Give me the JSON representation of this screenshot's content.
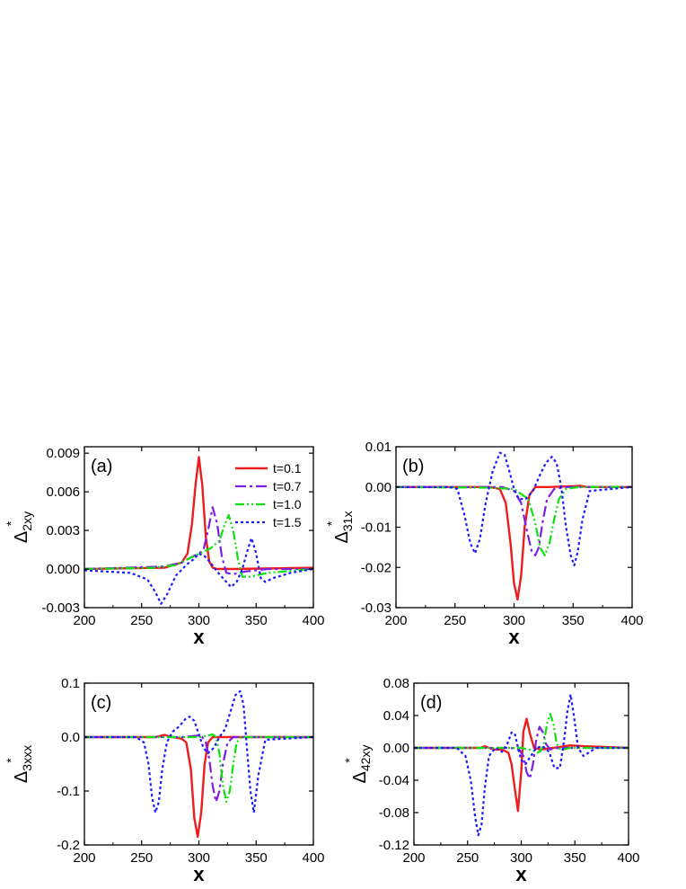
{
  "colors": {
    "t01": "#ee1c1c",
    "t07": "#7a1fe6",
    "t10": "#10e010",
    "t15": "#1a1aff",
    "axis": "#000000"
  },
  "chart_data": [
    {
      "type": "line",
      "panel_label": "(a)",
      "ylabel_main": "Δ",
      "ylabel_sup": "*",
      "ylabel_sub": "2xy",
      "xlabel": "x",
      "xlim": [
        200,
        400
      ],
      "ylim": [
        -0.003,
        0.0095
      ],
      "xticks": [
        200,
        250,
        300,
        350,
        400
      ],
      "xtick_labels": [
        "200",
        "250",
        "300",
        "350",
        "400"
      ],
      "yticks": [
        -0.003,
        0.0,
        0.003,
        0.006,
        0.009
      ],
      "ytick_labels": [
        "-0.003",
        "0.000",
        "0.003",
        "0.006",
        "0.009"
      ],
      "legend": {
        "placement": "top-right",
        "entries": [
          "t=0.1",
          "t=0.7",
          "t=1.0",
          "t=1.5"
        ]
      },
      "series": [
        {
          "name": "t=0.1",
          "color_key": "t01",
          "style": "solid",
          "x": [
            200,
            270,
            285,
            290,
            294,
            297,
            300,
            303,
            306,
            309,
            312,
            316,
            330,
            400
          ],
          "y": [
            0.0,
            0.0001,
            0.0005,
            0.0012,
            0.0035,
            0.0065,
            0.0087,
            0.0065,
            0.0025,
            0.0006,
            0.0001,
            0.0,
            0.0,
            0.0001
          ]
        },
        {
          "name": "t=0.7",
          "color_key": "t07",
          "style": "dashdot",
          "x": [
            200,
            270,
            285,
            295,
            300,
            304,
            308,
            312,
            316,
            320,
            324,
            330,
            340,
            360,
            400
          ],
          "y": [
            0.0,
            0.0002,
            0.0005,
            0.001,
            0.0012,
            0.0015,
            0.003,
            0.0048,
            0.0035,
            0.001,
            -0.0003,
            -0.0004,
            -0.0002,
            0.0,
            0.0
          ]
        },
        {
          "name": "t=1.0",
          "color_key": "t10",
          "style": "dashdotdot",
          "x": [
            200,
            260,
            280,
            300,
            310,
            318,
            322,
            326,
            330,
            334,
            338,
            345,
            360,
            400
          ],
          "y": [
            0.0,
            0.0001,
            0.0003,
            0.0012,
            0.0016,
            0.0022,
            0.0033,
            0.0042,
            0.003,
            0.0008,
            -0.0006,
            -0.0006,
            -0.0003,
            0.0
          ]
        },
        {
          "name": "t=1.5",
          "color_key": "t15",
          "style": "dot",
          "x": [
            200,
            240,
            255,
            262,
            267,
            272,
            280,
            290,
            296,
            300,
            305,
            310,
            316,
            322,
            328,
            333,
            338,
            342,
            346,
            350,
            354,
            358,
            365,
            380,
            400
          ],
          "y": [
            -0.0001,
            -0.0003,
            -0.0008,
            -0.0018,
            -0.0027,
            -0.002,
            -0.0005,
            0.0004,
            0.0008,
            0.0012,
            0.001,
            0.0005,
            -0.0002,
            -0.0008,
            -0.0014,
            -0.001,
            0.0,
            0.0013,
            0.0024,
            0.0012,
            -0.0007,
            -0.001,
            -0.0007,
            -0.0003,
            0.0
          ]
        }
      ]
    },
    {
      "type": "line",
      "panel_label": "(b)",
      "ylabel_main": "Δ",
      "ylabel_sup": "*",
      "ylabel_sub": "31x",
      "xlabel": "x",
      "xlim": [
        200,
        400
      ],
      "ylim": [
        -0.03,
        0.01
      ],
      "xticks": [
        200,
        250,
        300,
        350,
        400
      ],
      "xtick_labels": [
        "200",
        "250",
        "300",
        "350",
        "400"
      ],
      "yticks": [
        -0.03,
        -0.02,
        -0.01,
        0.0,
        0.01
      ],
      "ytick_labels": [
        "-0.03",
        "-0.02",
        "-0.01",
        "0.00",
        "0.01"
      ],
      "series": [
        {
          "name": "t=0.1",
          "color_key": "t01",
          "style": "solid",
          "x": [
            200,
            280,
            288,
            293,
            297,
            300,
            303,
            306,
            309,
            313,
            318,
            330,
            350,
            356,
            362,
            400
          ],
          "y": [
            0.0,
            0.0,
            -0.0005,
            -0.004,
            -0.014,
            -0.024,
            -0.028,
            -0.022,
            -0.01,
            -0.002,
            0.0,
            0.0,
            0.0002,
            0.0003,
            0.0,
            0.0
          ]
        },
        {
          "name": "t=0.7",
          "color_key": "t07",
          "style": "dashdot",
          "x": [
            200,
            290,
            300,
            306,
            311,
            315,
            318,
            321,
            324,
            328,
            334,
            345,
            400
          ],
          "y": [
            0.0,
            0.0,
            -0.001,
            -0.004,
            -0.011,
            -0.016,
            -0.017,
            -0.015,
            -0.009,
            -0.003,
            -0.0005,
            0.0,
            0.0
          ]
        },
        {
          "name": "t=1.0",
          "color_key": "t10",
          "style": "dashdotdot",
          "x": [
            200,
            280,
            300,
            312,
            318,
            322,
            326,
            330,
            334,
            338,
            344,
            355,
            400
          ],
          "y": [
            0.0,
            -0.0002,
            -0.0005,
            -0.003,
            -0.009,
            -0.015,
            -0.017,
            -0.014,
            -0.008,
            -0.003,
            -0.0005,
            0.0,
            0.0
          ]
        },
        {
          "name": "t=1.5",
          "color_key": "t15",
          "style": "dot",
          "x": [
            200,
            245,
            252,
            258,
            263,
            267,
            271,
            276,
            282,
            288,
            292,
            296,
            300,
            304,
            310,
            316,
            322,
            327,
            332,
            336,
            340,
            344,
            348,
            351,
            354,
            358,
            364,
            400
          ],
          "y": [
            0.0,
            0.0,
            -0.0005,
            -0.007,
            -0.014,
            -0.0165,
            -0.013,
            -0.004,
            0.004,
            0.0085,
            0.008,
            0.004,
            -0.0005,
            -0.003,
            -0.003,
            -0.001,
            0.003,
            0.006,
            0.0075,
            0.006,
            0.0,
            -0.01,
            -0.017,
            -0.0195,
            -0.016,
            -0.008,
            -0.001,
            0.0
          ]
        }
      ]
    },
    {
      "type": "line",
      "panel_label": "(c)",
      "ylabel_main": "Δ",
      "ylabel_sup": "*",
      "ylabel_sub": "3xxx",
      "xlabel": "x",
      "xlim": [
        200,
        400
      ],
      "ylim": [
        -0.2,
        0.1
      ],
      "xticks": [
        200,
        250,
        300,
        350,
        400
      ],
      "xtick_labels": [
        "200",
        "250",
        "300",
        "350",
        "400"
      ],
      "yticks": [
        -0.2,
        -0.1,
        0.0,
        0.1
      ],
      "ytick_labels": [
        "-0.2",
        "-0.1",
        "0.0",
        "0.1"
      ],
      "series": [
        {
          "name": "t=0.1",
          "color_key": "t01",
          "style": "solid",
          "x": [
            200,
            262,
            266,
            270,
            275,
            280,
            285,
            289,
            293,
            296,
            299,
            302,
            305,
            308,
            312,
            320,
            400
          ],
          "y": [
            0.0,
            0.0,
            0.002,
            0.004,
            0.001,
            -0.001,
            -0.003,
            -0.01,
            -0.06,
            -0.15,
            -0.185,
            -0.14,
            -0.05,
            -0.01,
            0.0,
            0.0,
            0.0
          ]
        },
        {
          "name": "t=0.7",
          "color_key": "t07",
          "style": "dashdot",
          "x": [
            200,
            285,
            295,
            300,
            303,
            306,
            309,
            312,
            315,
            318,
            321,
            325,
            330,
            400
          ],
          "y": [
            0.0,
            0.0,
            0.002,
            0.003,
            0.0,
            -0.01,
            -0.04,
            -0.09,
            -0.12,
            -0.1,
            -0.05,
            -0.01,
            0.0,
            0.0
          ]
        },
        {
          "name": "t=1.0",
          "color_key": "t10",
          "style": "dashdotdot",
          "x": [
            200,
            300,
            308,
            312,
            315,
            318,
            321,
            324,
            327,
            330,
            333,
            337,
            342,
            400
          ],
          "y": [
            0.0,
            0.0,
            0.003,
            0.005,
            0.0,
            -0.03,
            -0.09,
            -0.12,
            -0.1,
            -0.05,
            -0.01,
            0.0,
            0.0,
            0.0
          ]
        },
        {
          "name": "t=1.5",
          "color_key": "t15",
          "style": "dot",
          "x": [
            200,
            245,
            252,
            256,
            259,
            262,
            265,
            268,
            272,
            277,
            283,
            288,
            292,
            296,
            300,
            304,
            308,
            313,
            318,
            323,
            328,
            332,
            336,
            339,
            342,
            345,
            348,
            352,
            358,
            400
          ],
          "y": [
            0.0,
            0.0,
            -0.01,
            -0.05,
            -0.11,
            -0.14,
            -0.12,
            -0.06,
            -0.01,
            0.01,
            0.02,
            0.033,
            0.038,
            0.03,
            0.005,
            -0.02,
            -0.03,
            -0.02,
            0.0,
            0.015,
            0.05,
            0.078,
            0.085,
            0.06,
            -0.02,
            -0.1,
            -0.14,
            -0.07,
            -0.005,
            0.0
          ]
        }
      ]
    },
    {
      "type": "line",
      "panel_label": "(d)",
      "ylabel_main": "Δ",
      "ylabel_sup": "*",
      "ylabel_sub": "42xy",
      "xlabel": "x",
      "xlim": [
        200,
        400
      ],
      "ylim": [
        -0.12,
        0.08
      ],
      "xticks": [
        200,
        250,
        300,
        350,
        400
      ],
      "xtick_labels": [
        "200",
        "250",
        "300",
        "350",
        "400"
      ],
      "yticks": [
        -0.12,
        -0.08,
        -0.04,
        0.0,
        0.04,
        0.08
      ],
      "ytick_labels": [
        "-0.12",
        "-0.08",
        "-0.04",
        "0.00",
        "0.04",
        "0.08"
      ],
      "series": [
        {
          "name": "t=0.1",
          "color_key": "t01",
          "style": "solid",
          "x": [
            200,
            262,
            266,
            270,
            275,
            282,
            288,
            291,
            294,
            297,
            300,
            302,
            305,
            308,
            312,
            318,
            330,
            345,
            360,
            400
          ],
          "y": [
            0.0,
            0.0,
            0.002,
            0.0,
            -0.002,
            -0.002,
            -0.006,
            -0.02,
            -0.05,
            -0.078,
            -0.03,
            0.02,
            0.036,
            0.018,
            0.0,
            -0.002,
            0.0,
            0.003,
            0.002,
            0.0
          ]
        },
        {
          "name": "t=0.7",
          "color_key": "t07",
          "style": "dashdot",
          "x": [
            200,
            290,
            298,
            302,
            305,
            308,
            311,
            314,
            317,
            320,
            323,
            327,
            335,
            400
          ],
          "y": [
            0.0,
            0.0,
            -0.002,
            -0.01,
            -0.03,
            -0.038,
            -0.02,
            0.01,
            0.026,
            0.02,
            0.005,
            -0.002,
            0.0,
            0.0
          ]
        },
        {
          "name": "t=1.0",
          "color_key": "t10",
          "style": "dashdotdot",
          "x": [
            200,
            300,
            310,
            315,
            318,
            321,
            324,
            327,
            330,
            333,
            337,
            345,
            400
          ],
          "y": [
            0.0,
            0.0,
            -0.003,
            -0.006,
            -0.004,
            0.005,
            0.03,
            0.042,
            0.03,
            0.005,
            -0.003,
            0.0,
            0.0
          ]
        },
        {
          "name": "t=1.5",
          "color_key": "t15",
          "style": "dot",
          "x": [
            200,
            240,
            248,
            253,
            257,
            260,
            263,
            266,
            270,
            276,
            282,
            287,
            291,
            294,
            297,
            300,
            304,
            309,
            314,
            320,
            326,
            331,
            336,
            340,
            343,
            346,
            349,
            353,
            358,
            370,
            400
          ],
          "y": [
            0.0,
            0.0,
            -0.01,
            -0.04,
            -0.085,
            -0.108,
            -0.095,
            -0.05,
            -0.01,
            0.0,
            -0.005,
            0.005,
            0.019,
            0.018,
            0.0,
            -0.015,
            -0.02,
            -0.01,
            0.0,
            0.002,
            -0.005,
            -0.025,
            -0.025,
            0.01,
            0.045,
            0.066,
            0.04,
            0.0,
            -0.01,
            0.0,
            0.0
          ]
        }
      ]
    }
  ]
}
